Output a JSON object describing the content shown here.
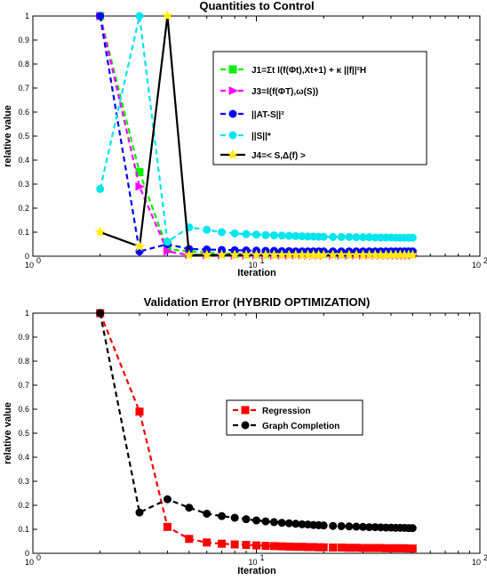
{
  "chart_data": [
    {
      "type": "line",
      "title": "Quantities to Control",
      "xlabel": "Iteration",
      "ylabel": "relative value",
      "xscale": "log",
      "xlim": [
        1,
        100
      ],
      "ylim": [
        0,
        1
      ],
      "xtick_labels": [
        "10",
        "10",
        "10"
      ],
      "xtick_exponents": [
        "0",
        "1",
        "2"
      ],
      "ytick_labels": [
        "0",
        "0.1",
        "0.2",
        "0.3",
        "0.4",
        "0.5",
        "0.6",
        "0.7",
        "0.8",
        "0.9",
        "1"
      ],
      "grid": false,
      "legend_position": "right",
      "legend": [
        "J1=Σt l(f(Φt),Xt+1) + κ ||f||²H",
        "J3=l(f(ΦT),ω(S))",
        "||AT-S||²",
        "||S||*",
        "J4=< S,Δ(f) >"
      ],
      "series": [
        {
          "color": "#00ee00",
          "marker": "square",
          "style": "dashed",
          "x": [
            2,
            3,
            4,
            5,
            6,
            7,
            8,
            9,
            10,
            11,
            12,
            13,
            14,
            15,
            16,
            17,
            18,
            19,
            20,
            22,
            24,
            26,
            28,
            30,
            32,
            34,
            36,
            38,
            40,
            42,
            44,
            46,
            48,
            50
          ],
          "y": [
            1.0,
            0.35,
            0.03,
            0.02,
            0.015,
            0.012,
            0.01,
            0.01,
            0.01,
            0.01,
            0.01,
            0.01,
            0.01,
            0.01,
            0.01,
            0.01,
            0.01,
            0.01,
            0.01,
            0.01,
            0.01,
            0.01,
            0.01,
            0.01,
            0.01,
            0.01,
            0.01,
            0.01,
            0.01,
            0.01,
            0.01,
            0.01,
            0.01,
            0.01
          ]
        },
        {
          "color": "#ff00ff",
          "marker": "triangle-right",
          "style": "dashed",
          "x": [
            2,
            3,
            4,
            5,
            6,
            7,
            8,
            9,
            10,
            11,
            12,
            13,
            14,
            15,
            16,
            17,
            18,
            19,
            20,
            22,
            24,
            26,
            28,
            30,
            32,
            34,
            36,
            38,
            40,
            42,
            44,
            46,
            48,
            50
          ],
          "y": [
            1.0,
            0.29,
            0.02,
            0.005,
            0.004,
            0.004,
            0.003,
            0.003,
            0.003,
            0.003,
            0.003,
            0.003,
            0.003,
            0.003,
            0.003,
            0.003,
            0.003,
            0.003,
            0.003,
            0.003,
            0.003,
            0.003,
            0.003,
            0.003,
            0.003,
            0.003,
            0.003,
            0.003,
            0.003,
            0.003,
            0.003,
            0.003,
            0.003,
            0.003
          ]
        },
        {
          "color": "#0000ff",
          "marker": "circle",
          "style": "dashed",
          "x": [
            2,
            3,
            4,
            5,
            6,
            7,
            8,
            9,
            10,
            11,
            12,
            13,
            14,
            15,
            16,
            17,
            18,
            19,
            20,
            22,
            24,
            26,
            28,
            30,
            32,
            34,
            36,
            38,
            40,
            42,
            44,
            46,
            48,
            50
          ],
          "y": [
            1.0,
            0.02,
            0.05,
            0.03,
            0.028,
            0.026,
            0.025,
            0.024,
            0.023,
            0.022,
            0.022,
            0.021,
            0.021,
            0.02,
            0.02,
            0.02,
            0.02,
            0.02,
            0.02,
            0.02,
            0.02,
            0.02,
            0.02,
            0.02,
            0.02,
            0.02,
            0.02,
            0.02,
            0.02,
            0.02,
            0.02,
            0.02,
            0.02,
            0.02
          ]
        },
        {
          "color": "#00e5ee",
          "marker": "circle",
          "style": "dashed",
          "x": [
            2,
            3,
            4,
            5,
            6,
            7,
            8,
            9,
            10,
            11,
            12,
            13,
            14,
            15,
            16,
            17,
            18,
            19,
            20,
            22,
            24,
            26,
            28,
            30,
            32,
            34,
            36,
            38,
            40,
            42,
            44,
            46,
            48,
            50
          ],
          "y": [
            0.28,
            1.0,
            0.06,
            0.12,
            0.11,
            0.1,
            0.095,
            0.092,
            0.09,
            0.088,
            0.087,
            0.086,
            0.085,
            0.084,
            0.083,
            0.082,
            0.082,
            0.081,
            0.081,
            0.08,
            0.08,
            0.08,
            0.079,
            0.079,
            0.079,
            0.078,
            0.078,
            0.078,
            0.078,
            0.077,
            0.077,
            0.077,
            0.077,
            0.077
          ]
        },
        {
          "color": "#000000",
          "marker": "star",
          "style": "solid",
          "marker_color": "#ffee00",
          "x": [
            2,
            3,
            4,
            5,
            6,
            7,
            8,
            9,
            10,
            11,
            12,
            13,
            14,
            15,
            16,
            17,
            18,
            19,
            20,
            22,
            24,
            26,
            28,
            30,
            32,
            34,
            36,
            38,
            40,
            42,
            44,
            46,
            48,
            50
          ],
          "y": [
            0.1,
            0.04,
            1.0,
            0.005,
            0.005,
            0.005,
            0.005,
            0.005,
            0.005,
            0.005,
            0.005,
            0.005,
            0.005,
            0.005,
            0.005,
            0.005,
            0.005,
            0.005,
            0.005,
            0.005,
            0.005,
            0.005,
            0.005,
            0.005,
            0.005,
            0.005,
            0.005,
            0.005,
            0.005,
            0.005,
            0.005,
            0.005,
            0.005,
            0.005
          ]
        }
      ]
    },
    {
      "type": "line",
      "title": "Validation Error (HYBRID OPTIMIZATION)",
      "xlabel": "Iteration",
      "ylabel": "relative value",
      "xscale": "log",
      "xlim": [
        1,
        100
      ],
      "ylim": [
        0,
        1
      ],
      "xtick_labels": [
        "10",
        "10",
        "10"
      ],
      "xtick_exponents": [
        "0",
        "1",
        "2"
      ],
      "ytick_labels": [
        "0",
        "0.1",
        "0.2",
        "0.3",
        "0.4",
        "0.5",
        "0.6",
        "0.7",
        "0.8",
        "0.9",
        "1"
      ],
      "grid": false,
      "legend_position": "center-right",
      "legend": [
        "Regression",
        "Graph Completion"
      ],
      "series": [
        {
          "name": "Regression",
          "color": "#ff0000",
          "marker": "square",
          "style": "dashed",
          "x": [
            2,
            3,
            4,
            5,
            6,
            7,
            8,
            9,
            10,
            11,
            12,
            13,
            14,
            15,
            16,
            17,
            18,
            19,
            20,
            22,
            24,
            26,
            28,
            30,
            32,
            34,
            36,
            38,
            40,
            42,
            44,
            46,
            48,
            50
          ],
          "y": [
            1.0,
            0.59,
            0.11,
            0.06,
            0.045,
            0.04,
            0.037,
            0.035,
            0.033,
            0.031,
            0.03,
            0.029,
            0.028,
            0.027,
            0.027,
            0.026,
            0.026,
            0.025,
            0.025,
            0.024,
            0.024,
            0.023,
            0.023,
            0.022,
            0.022,
            0.022,
            0.022,
            0.021,
            0.021,
            0.021,
            0.021,
            0.021,
            0.02,
            0.02
          ]
        },
        {
          "name": "Graph Completion",
          "color": "#000000",
          "marker": "circle",
          "style": "dashed",
          "x": [
            2,
            3,
            4,
            5,
            6,
            7,
            8,
            9,
            10,
            11,
            12,
            13,
            14,
            15,
            16,
            17,
            18,
            19,
            20,
            22,
            24,
            26,
            28,
            30,
            32,
            34,
            36,
            38,
            40,
            42,
            44,
            46,
            48,
            50
          ],
          "y": [
            1.0,
            0.17,
            0.225,
            0.19,
            0.165,
            0.155,
            0.148,
            0.142,
            0.137,
            0.133,
            0.13,
            0.127,
            0.125,
            0.123,
            0.121,
            0.12,
            0.118,
            0.117,
            0.116,
            0.114,
            0.113,
            0.112,
            0.111,
            0.11,
            0.109,
            0.109,
            0.108,
            0.107,
            0.107,
            0.106,
            0.106,
            0.106,
            0.105,
            0.105
          ]
        }
      ]
    }
  ]
}
